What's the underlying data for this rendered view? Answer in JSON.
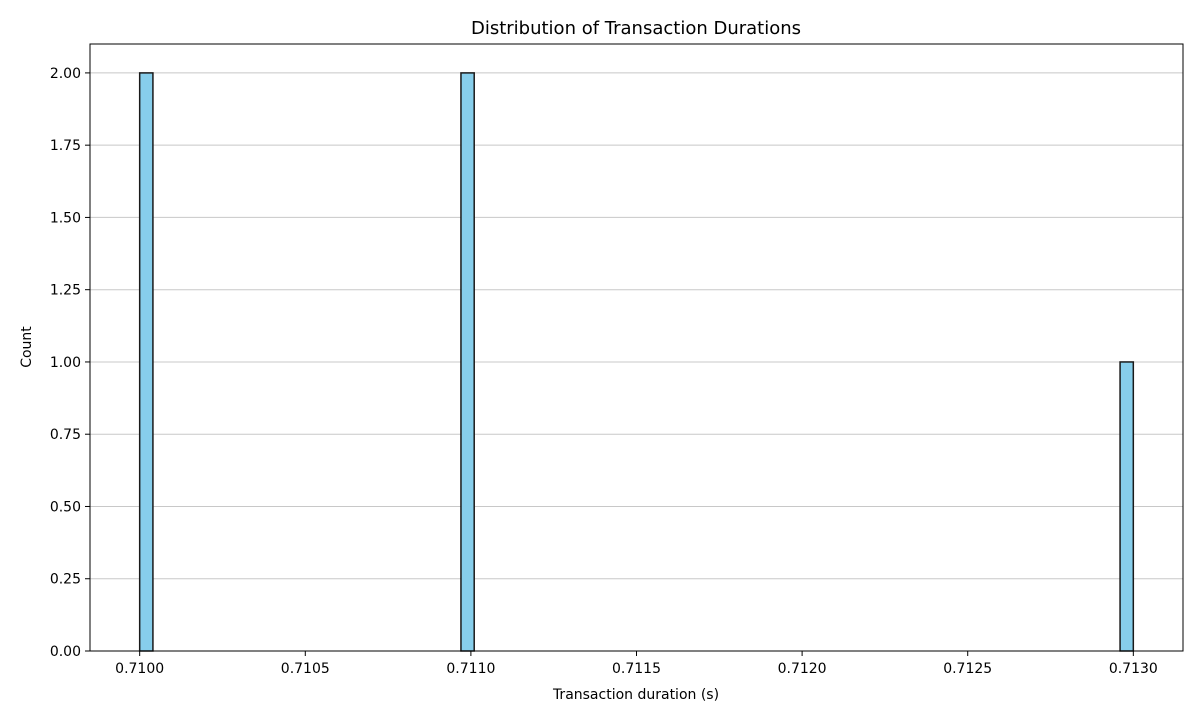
{
  "chart_data": {
    "type": "bar",
    "title": "Distribution of Transaction Durations",
    "xlabel": "Transaction duration (s)",
    "ylabel": "Count",
    "xlim": [
      0.70985,
      0.71315
    ],
    "ylim": [
      0,
      2.1
    ],
    "x_ticks": [
      "0.7100",
      "0.7105",
      "0.7110",
      "0.7115",
      "0.7120",
      "0.7125",
      "0.7130"
    ],
    "x_tick_values": [
      0.71,
      0.7105,
      0.711,
      0.7115,
      0.712,
      0.7125,
      0.713
    ],
    "y_ticks": [
      "0.00",
      "0.25",
      "0.50",
      "0.75",
      "1.00",
      "1.25",
      "1.50",
      "1.75",
      "2.00"
    ],
    "y_tick_values": [
      0,
      0.25,
      0.5,
      0.75,
      1.0,
      1.25,
      1.5,
      1.75,
      2.0
    ],
    "bins": [
      {
        "start": 0.71,
        "end": 0.71004,
        "count": 2
      },
      {
        "start": 0.71097,
        "end": 0.71101,
        "count": 2
      },
      {
        "start": 0.71296,
        "end": 0.713,
        "count": 1
      }
    ],
    "grid": "horizontal",
    "legend": "none",
    "colors": {
      "bar_fill": "#87ceeb",
      "bar_edge": "#1a1a1a",
      "grid": "#c8c8c8"
    }
  }
}
